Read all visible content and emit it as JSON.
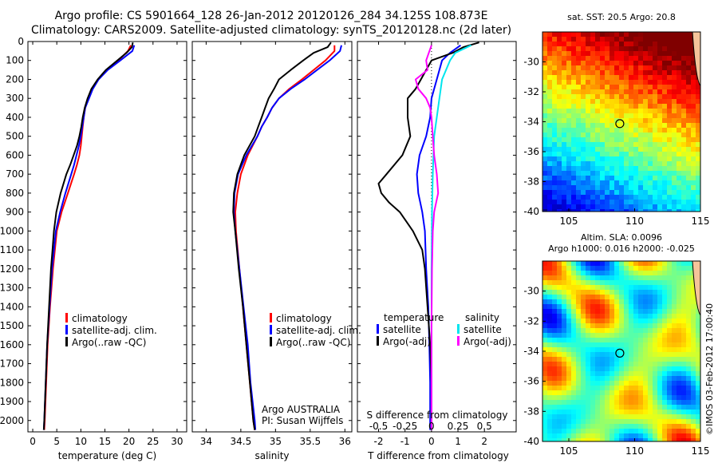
{
  "header": {
    "line1": "Argo profile: CS 5901664_128 26-Jan-2012 20120126_284 34.125S 108.873E",
    "line2": "Climatology: CARS2009. Satellite-adjusted climatology: synTS_20120128.nc (2d later)"
  },
  "watermark": "©IMOS 03-Feb-2012 17:00:40",
  "colors": {
    "climatology": "#ff0000",
    "satellite": "#0000ff",
    "argo": "#000000",
    "salinity_satellite": "#00e5ee",
    "salinity_argo": "#ff00ff"
  },
  "depth_axis": {
    "ticks": [
      0,
      100,
      200,
      300,
      400,
      500,
      600,
      700,
      800,
      900,
      1000,
      1100,
      1200,
      1300,
      1400,
      1500,
      1600,
      1700,
      1800,
      1900,
      2000
    ]
  },
  "chart_data": [
    {
      "type": "line",
      "xlabel": "temperature (deg C)",
      "xlim": [
        -1,
        32
      ],
      "ylim": [
        2060,
        0
      ],
      "xticks": [
        0,
        5,
        10,
        15,
        20,
        25,
        30
      ],
      "legend": [
        "climatology",
        "satellite-adj. clim.",
        "Argo(..raw -QC)"
      ],
      "series": [
        {
          "name": "climatology",
          "depth": [
            20,
            50,
            100,
            150,
            200,
            250,
            300,
            350,
            400,
            450,
            500,
            550,
            600,
            650,
            700,
            800,
            900,
            1000,
            1200,
            1400,
            1600,
            1800,
            2000,
            2050
          ],
          "values": [
            20.4,
            19.8,
            17.8,
            15.5,
            13.6,
            12.4,
            11.6,
            10.9,
            10.6,
            10.4,
            10.2,
            10.0,
            9.7,
            9.2,
            8.6,
            7.3,
            6.0,
            5.0,
            4.2,
            3.6,
            3.1,
            2.8,
            2.5,
            2.4
          ]
        },
        {
          "name": "satellite-adj. clim.",
          "depth": [
            20,
            50,
            100,
            150,
            200,
            250,
            300,
            350,
            400,
            450,
            500,
            550,
            600,
            650,
            700,
            800,
            900,
            1000,
            1200,
            1400,
            1600,
            1800,
            2000,
            2050
          ],
          "values": [
            21.1,
            20.7,
            18.2,
            15.6,
            13.7,
            12.5,
            11.7,
            10.9,
            10.6,
            10.3,
            10.0,
            9.6,
            9.1,
            8.6,
            8.0,
            6.8,
            5.7,
            4.8,
            4.0,
            3.5,
            3.0,
            2.7,
            2.4,
            2.3
          ]
        },
        {
          "name": "Argo(..raw -QC)",
          "depth": [
            5,
            30,
            60,
            100,
            150,
            200,
            250,
            300,
            350,
            400,
            450,
            500,
            550,
            600,
            650,
            700,
            800,
            900,
            1000,
            1100,
            1200,
            1400,
            1600,
            1800,
            2000,
            2050
          ],
          "values": [
            20.8,
            20.6,
            19.5,
            17.6,
            15.2,
            13.5,
            12.2,
            11.4,
            10.8,
            10.4,
            10.1,
            9.7,
            9.2,
            8.5,
            7.8,
            7.0,
            5.8,
            4.9,
            4.4,
            4.1,
            3.8,
            3.4,
            3.0,
            2.7,
            2.4,
            2.3
          ]
        }
      ]
    },
    {
      "type": "line",
      "xlabel": "salinity",
      "xlim": [
        33.8,
        36.1
      ],
      "ylim": [
        2060,
        0
      ],
      "xticks": [
        34,
        34.5,
        35,
        35.5,
        36
      ],
      "legend": [
        "climatology",
        "satellite-adj. clim.",
        "Argo(..raw -QC)"
      ],
      "annotation": [
        "Argo AUSTRALIA",
        "PI: Susan Wijffels"
      ],
      "series": [
        {
          "name": "climatology",
          "depth": [
            20,
            50,
            100,
            150,
            200,
            250,
            300,
            350,
            400,
            450,
            500,
            600,
            700,
            800,
            900,
            1000,
            1200,
            1400,
            1600,
            1800,
            2000,
            2050
          ],
          "values": [
            35.85,
            35.85,
            35.72,
            35.55,
            35.38,
            35.2,
            35.05,
            34.95,
            34.88,
            34.8,
            34.74,
            34.6,
            34.5,
            34.45,
            34.42,
            34.43,
            34.48,
            34.53,
            34.58,
            34.63,
            34.68,
            34.7
          ]
        },
        {
          "name": "satellite-adj. clim.",
          "depth": [
            20,
            50,
            100,
            150,
            200,
            250,
            300,
            350,
            400,
            450,
            500,
            600,
            700,
            800,
            900,
            1000,
            1200,
            1400,
            1600,
            1800,
            2000,
            2050
          ],
          "values": [
            35.95,
            35.93,
            35.78,
            35.6,
            35.42,
            35.22,
            35.05,
            34.95,
            34.88,
            34.8,
            34.74,
            34.58,
            34.46,
            34.41,
            34.4,
            34.42,
            34.48,
            34.54,
            34.6,
            34.64,
            34.7,
            34.71
          ]
        },
        {
          "name": "Argo(..raw -QC)",
          "depth": [
            5,
            30,
            60,
            100,
            150,
            200,
            250,
            300,
            350,
            400,
            450,
            500,
            600,
            700,
            800,
            900,
            1000,
            1200,
            1400,
            1600,
            1800,
            2000,
            2050
          ],
          "values": [
            35.8,
            35.75,
            35.55,
            35.4,
            35.22,
            35.05,
            34.98,
            34.9,
            34.85,
            34.8,
            34.75,
            34.7,
            34.55,
            34.45,
            34.4,
            34.39,
            34.42,
            34.47,
            34.53,
            34.58,
            34.63,
            34.68,
            34.7
          ]
        }
      ]
    },
    {
      "type": "line",
      "xlabel": "T difference from climatology",
      "xlabel_top": "S difference from climatology",
      "xlim_T": [
        -2.8,
        3.2
      ],
      "ylim": [
        2060,
        0
      ],
      "xticks_T": [
        -2,
        -1,
        0,
        1,
        2
      ],
      "xticks_S": [
        {
          "label": "-0.5",
          "T": -2
        },
        {
          "label": "-0.25",
          "T": -1
        },
        {
          "label": "0",
          "T": 0
        },
        {
          "label": "0.25",
          "T": 1
        },
        {
          "label": "0.5",
          "T": 2
        }
      ],
      "legend_temperature": [
        "temperature",
        "satellite",
        "Argo(-adj)"
      ],
      "legend_salinity": [
        "salinity",
        "satellite",
        "Argo(-adj)"
      ],
      "series": [
        {
          "name": "temperature satellite",
          "depth": [
            20,
            60,
            100,
            200,
            300,
            400,
            500,
            600,
            700,
            800,
            900,
            1000,
            1200,
            1400,
            1600,
            1800,
            2000,
            2050
          ],
          "values": [
            1.1,
            0.7,
            0.4,
            0.2,
            0.0,
            -0.05,
            -0.2,
            -0.45,
            -0.55,
            -0.5,
            -0.35,
            -0.25,
            -0.2,
            -0.12,
            -0.08,
            -0.05,
            -0.05,
            -0.05
          ]
        },
        {
          "name": "temperature Argo(-adj)",
          "depth": [
            5,
            30,
            60,
            100,
            150,
            200,
            250,
            300,
            400,
            500,
            600,
            700,
            750,
            800,
            850,
            900,
            1000,
            1100,
            1200,
            1400,
            1600,
            1800,
            2000,
            2050
          ],
          "values": [
            1.8,
            1.2,
            0.8,
            0.0,
            -0.2,
            -0.4,
            -0.6,
            -0.9,
            -0.9,
            -0.8,
            -1.1,
            -1.7,
            -2.0,
            -1.9,
            -1.6,
            -1.2,
            -0.7,
            -0.35,
            -0.25,
            -0.15,
            -0.05,
            0.0,
            0.0,
            0.0
          ]
        },
        {
          "name": "salinity satellite",
          "depth": [
            20,
            60,
            100,
            200,
            300,
            400,
            500,
            700,
            900,
            1200,
            1500,
            1800,
            2050
          ],
          "values": [
            1.5,
            0.9,
            0.7,
            0.4,
            0.3,
            0.2,
            0.1,
            0.05,
            0.02,
            0.0,
            0.0,
            0.0,
            0.0
          ]
        },
        {
          "name": "salinity Argo(-adj)",
          "depth": [
            20,
            60,
            100,
            150,
            200,
            250,
            300,
            350,
            400,
            500,
            600,
            700,
            800,
            900,
            1000,
            1200,
            1500,
            1800,
            2050
          ],
          "values": [
            0.0,
            -0.1,
            -0.2,
            -0.15,
            -0.6,
            -0.5,
            -0.2,
            -0.05,
            0.0,
            0.05,
            0.1,
            0.2,
            0.25,
            0.1,
            0.05,
            0.02,
            0.0,
            0.0,
            0.0
          ]
        }
      ]
    },
    {
      "type": "heatmap",
      "title": "sat. SST: 20.5  Argo: 20.8",
      "xlim": [
        103,
        115
      ],
      "ylim": [
        -40,
        -28
      ],
      "xticks": [
        105,
        110,
        115
      ],
      "yticks": [
        -30,
        -32,
        -34,
        -36,
        -38,
        -40
      ],
      "marker": {
        "lon": 108.873,
        "lat": -34.125
      }
    },
    {
      "type": "heatmap",
      "title": "Altim. SLA: 0.0096",
      "subtitle": "Argo h1000: 0.016  h2000: -0.025",
      "xlim": [
        103,
        115
      ],
      "ylim": [
        -40,
        -28
      ],
      "xticks": [
        105,
        110,
        115
      ],
      "yticks": [
        -30,
        -32,
        -34,
        -36,
        -38,
        -40
      ],
      "marker": {
        "lon": 108.873,
        "lat": -34.125
      }
    }
  ]
}
